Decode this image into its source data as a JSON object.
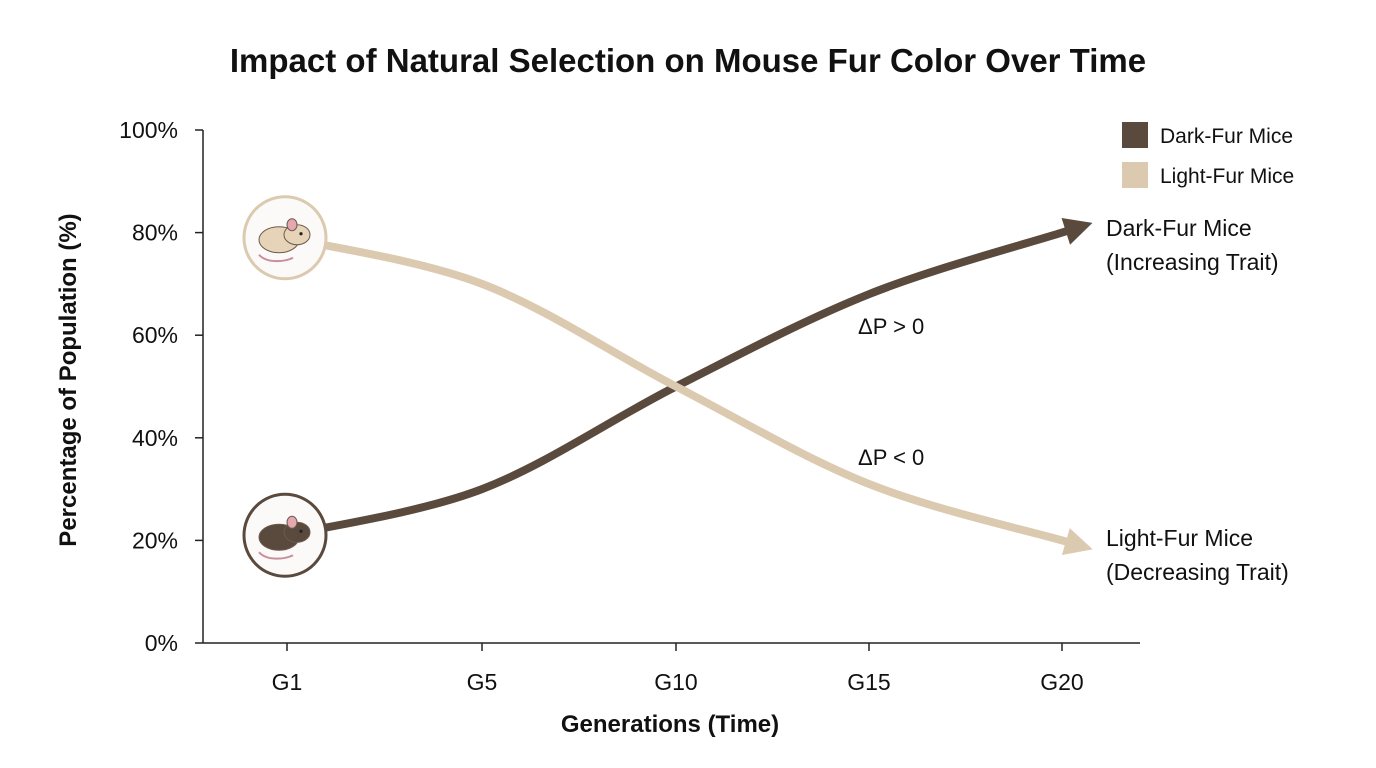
{
  "chart_data": {
    "type": "line",
    "title": "Impact of Natural Selection on Mouse Fur Color Over Time",
    "xlabel": "Generations (Time)",
    "ylabel": "Percentage of Population (%)",
    "categories": [
      "G1",
      "G5",
      "G10",
      "G15",
      "G20"
    ],
    "y_ticks": [
      "0%",
      "20%",
      "40%",
      "60%",
      "80%",
      "100%"
    ],
    "ylim": [
      0,
      100
    ],
    "grid": false,
    "legend_position": "top-right",
    "series": [
      {
        "name": "Dark-Fur Mice",
        "color": "#5a4a3e",
        "values": [
          21,
          30,
          50,
          68,
          80
        ],
        "end_label": [
          "Dark-Fur Mice",
          "(Increasing Trait)"
        ],
        "icon": "dark-mouse-icon"
      },
      {
        "name": "Light-Fur Mice",
        "color": "#dccab0",
        "values": [
          79,
          70,
          50,
          31,
          20
        ],
        "end_label": [
          "Light-Fur Mice",
          "(Decreasing Trait)"
        ],
        "icon": "light-mouse-icon"
      }
    ],
    "annotations": [
      "ΔP > 0",
      "ΔP < 0"
    ]
  }
}
